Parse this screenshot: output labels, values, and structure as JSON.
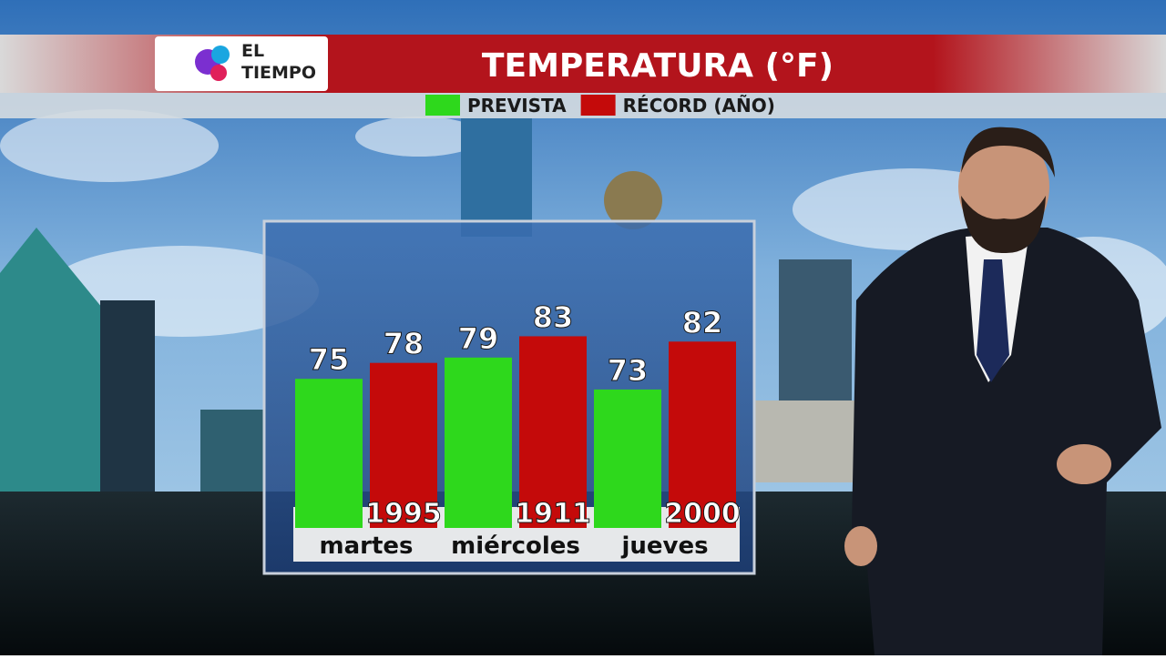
{
  "brand": [
    "EL",
    "TIEMPO"
  ],
  "chart_data": {
    "type": "bar",
    "title": "TEMPERATURA (°F)",
    "categories": [
      "martes",
      "miércoles",
      "jueves"
    ],
    "series": [
      {
        "name": "PREVISTA",
        "color": "#2ed81c",
        "values": [
          75,
          79,
          73
        ]
      },
      {
        "name": "RÉCORD (AÑO)",
        "color": "#c40a0a",
        "values": [
          78,
          83,
          82
        ],
        "years": [
          "1995",
          "1911",
          "2000"
        ]
      }
    ],
    "ylim": [
      47,
      100
    ]
  }
}
